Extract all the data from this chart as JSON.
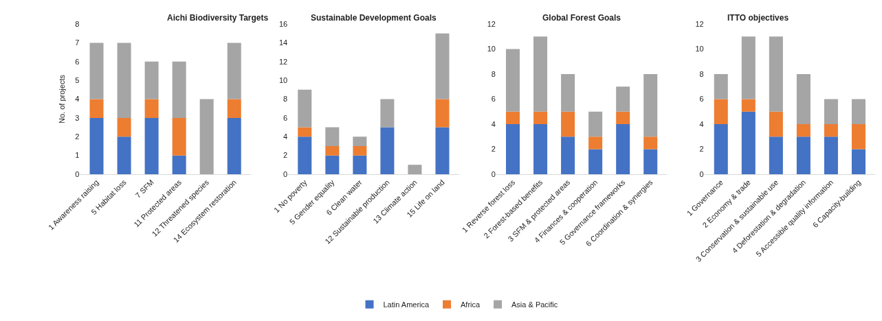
{
  "chart_data": [
    {
      "type": "bar",
      "stacked": true,
      "title": "Aichi Biodiversity Targets",
      "ylabel": "No. of projects",
      "legend": "bottom",
      "grid": false,
      "categories": [
        "1 Awareness raising",
        "5 Habitat loss",
        "7 SFM",
        "11 Protected areas",
        "12 Threatened species",
        "14 Ecosystem restoration"
      ],
      "ylim": [
        0,
        8
      ],
      "yticks": [
        0,
        1,
        2,
        3,
        4,
        5,
        6,
        7,
        8
      ],
      "series": [
        {
          "name": "Latin America",
          "color": "#4472c4",
          "values": [
            3,
            2,
            3,
            1,
            0,
            3
          ]
        },
        {
          "name": "Africa",
          "color": "#ed7d31",
          "values": [
            1,
            1,
            1,
            2,
            0,
            1
          ]
        },
        {
          "name": "Asia & Pacific",
          "color": "#a5a5a5",
          "values": [
            3,
            4,
            2,
            3,
            4,
            3
          ]
        }
      ]
    },
    {
      "type": "bar",
      "stacked": true,
      "title": "Sustainable Development Goals",
      "legend": "bottom",
      "grid": false,
      "categories": [
        "1 No poverty",
        "5 Gender equality",
        "6 Clean water",
        "12 Sustainable production",
        "13 Climate action",
        "15 Life on land"
      ],
      "ylim": [
        0,
        16
      ],
      "yticks": [
        0,
        2,
        4,
        6,
        8,
        10,
        12,
        14,
        16
      ],
      "series": [
        {
          "name": "Latin America",
          "color": "#4472c4",
          "values": [
            4,
            2,
            2,
            5,
            0,
            5
          ]
        },
        {
          "name": "Africa",
          "color": "#ed7d31",
          "values": [
            1,
            1,
            1,
            0,
            0,
            3
          ]
        },
        {
          "name": "Asia & Pacific",
          "color": "#a5a5a5",
          "values": [
            4,
            2,
            1,
            3,
            1,
            7
          ]
        }
      ]
    },
    {
      "type": "bar",
      "stacked": true,
      "title": "Global Forest Goals",
      "legend": "bottom",
      "grid": false,
      "categories": [
        "1 Reverse forest loss",
        "2 Forest-based benefits",
        "3 SFM & protected areas",
        "4 Finances & cooperation",
        "5 Governance frameworks",
        "6 Coordination & synergies"
      ],
      "ylim": [
        0,
        12
      ],
      "yticks": [
        0,
        2,
        4,
        6,
        8,
        10,
        12
      ],
      "series": [
        {
          "name": "Latin America",
          "color": "#4472c4",
          "values": [
            4,
            4,
            3,
            2,
            4,
            2
          ]
        },
        {
          "name": "Africa",
          "color": "#ed7d31",
          "values": [
            1,
            1,
            2,
            1,
            1,
            1
          ]
        },
        {
          "name": "Asia & Pacific",
          "color": "#a5a5a5",
          "values": [
            5,
            6,
            3,
            2,
            2,
            5
          ]
        }
      ]
    },
    {
      "type": "bar",
      "stacked": true,
      "title": "ITTO objectives",
      "legend": "bottom",
      "grid": false,
      "categories": [
        "1 Governance",
        "2 Economy & trade",
        "3 Conservation & sustainable use",
        "4 Deforestation & degradation",
        "5 Accessible quality information",
        "6 Capacity-building"
      ],
      "ylim": [
        0,
        12
      ],
      "yticks": [
        0,
        2,
        4,
        6,
        8,
        10,
        12
      ],
      "series": [
        {
          "name": "Latin America",
          "color": "#4472c4",
          "values": [
            4,
            5,
            3,
            3,
            3,
            2
          ]
        },
        {
          "name": "Africa",
          "color": "#ed7d31",
          "values": [
            2,
            1,
            2,
            1,
            1,
            2
          ]
        },
        {
          "name": "Asia & Pacific",
          "color": "#a5a5a5",
          "values": [
            2,
            5,
            6,
            4,
            2,
            2
          ]
        }
      ]
    }
  ]
}
